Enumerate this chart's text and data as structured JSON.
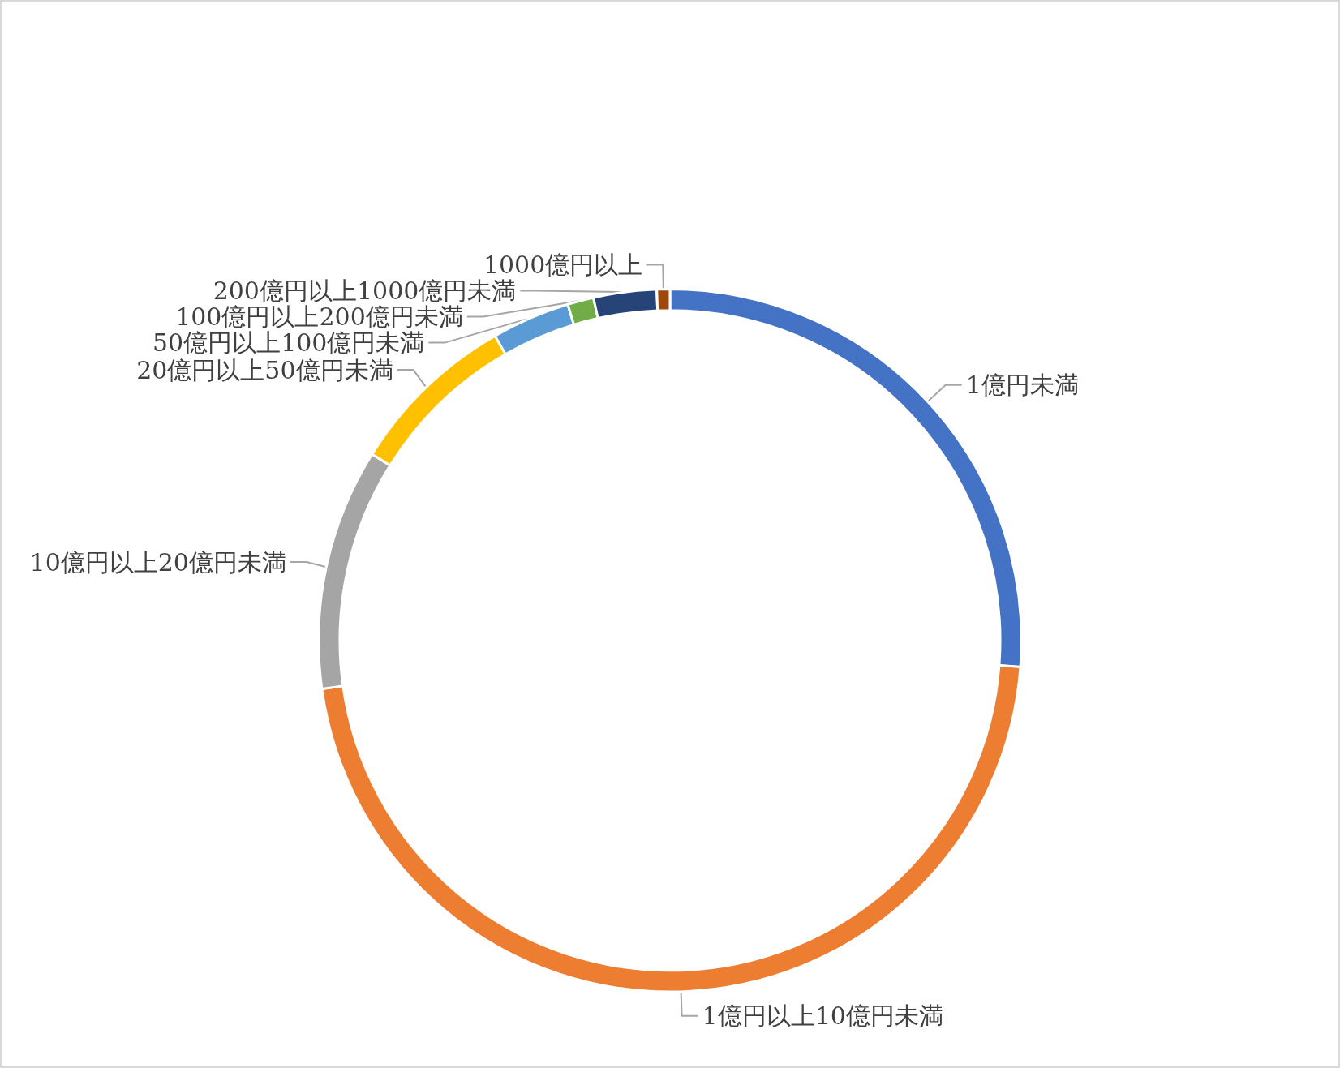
{
  "chart_data": {
    "type": "donut",
    "categories": [
      "1億円未満",
      "1億円以上10億円未満",
      "10億円以上20億円未満",
      "20億円以上50億円未満",
      "50億円以上100億円未満",
      "100億円以上200億円未満",
      "200億円以上1000億円未満",
      "1000億円以上"
    ],
    "values": [
      26.2,
      46.6,
      11.1,
      7.8,
      3.6,
      1.2,
      2.9,
      0.6
    ],
    "colors": [
      "#4472c4",
      "#ed7d31",
      "#a5a5a5",
      "#ffc000",
      "#5b9bd5",
      "#70ad47",
      "#264478",
      "#9e480e"
    ],
    "legend": false
  }
}
